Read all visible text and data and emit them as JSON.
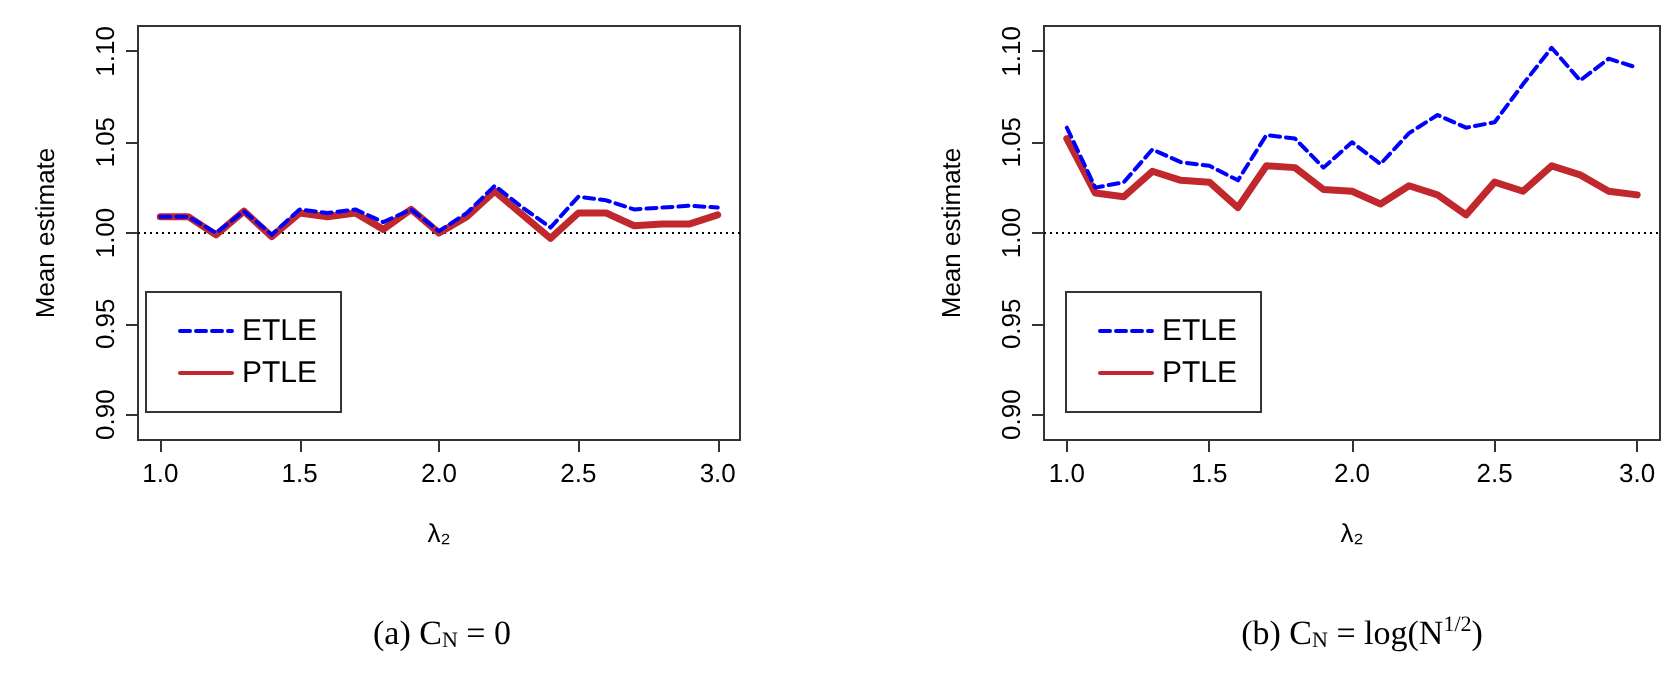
{
  "chart_data": [
    {
      "type": "line",
      "annotations": [
        "(a) C$_{N}$ = 0"
      ],
      "xlabel": "λ₂",
      "ylabel": "Mean estimate",
      "x": [
        1.0,
        1.1,
        1.2,
        1.3,
        1.4,
        1.5,
        1.6,
        1.7,
        1.8,
        1.9,
        2.0,
        2.1,
        2.2,
        2.3,
        2.4,
        2.5,
        2.6,
        2.7,
        2.8,
        2.9,
        3.0
      ],
      "series": [
        {
          "name": "ETLE",
          "color": "#0000ff",
          "line_style": "dashed",
          "values": [
            1.009,
            1.009,
            1.0,
            1.012,
            0.999,
            1.013,
            1.011,
            1.013,
            1.006,
            1.013,
            1.001,
            1.011,
            1.026,
            1.014,
            1.003,
            1.02,
            1.018,
            1.013,
            1.014,
            1.015,
            1.014
          ]
        },
        {
          "name": "PTLE",
          "color": "#c0282d",
          "line_style": "solid",
          "values": [
            1.009,
            1.009,
            0.999,
            1.012,
            0.998,
            1.011,
            1.009,
            1.011,
            1.002,
            1.013,
            1.0,
            1.009,
            1.023,
            1.01,
            0.997,
            1.011,
            1.011,
            1.004,
            1.005,
            1.005,
            1.01
          ]
        }
      ],
      "xlim": [
        0.92,
        3.08
      ],
      "ylim": [
        0.886,
        1.114
      ],
      "xticks": [
        {
          "value": 1,
          "label": "1.0"
        },
        {
          "value": 1.5,
          "label": "1.5"
        },
        {
          "value": 2,
          "label": "2.0"
        },
        {
          "value": 2.5,
          "label": "2.5"
        },
        {
          "value": 3,
          "label": "3.0"
        }
      ],
      "yticks": [
        {
          "value": 0.9,
          "label": "0.90"
        },
        {
          "value": 0.95,
          "label": "0.95"
        },
        {
          "value": 1,
          "label": "1.00"
        },
        {
          "value": 1.05,
          "label": "1.05"
        },
        {
          "value": 1.1,
          "label": "1.10"
        }
      ],
      "ref_lines": [
        {
          "axis": "y",
          "value": 1,
          "color": "#000000",
          "line_style": "dotted"
        }
      ],
      "grid": false,
      "legend": "bottom left",
      "marker": "none"
    },
    {
      "type": "line",
      "annotations": [
        "(b) C$_{N}$ = log(N$^{1/2}$)"
      ],
      "xlabel": "λ₂",
      "ylabel": "Mean estimate",
      "x": [
        1.0,
        1.1,
        1.2,
        1.3,
        1.4,
        1.5,
        1.6,
        1.7,
        1.8,
        1.9,
        2.0,
        2.1,
        2.2,
        2.3,
        2.4,
        2.5,
        2.6,
        2.7,
        2.8,
        2.9,
        3.0
      ],
      "series": [
        {
          "name": "ETLE",
          "color": "#0000ff",
          "line_style": "dashed",
          "values": [
            1.058,
            1.025,
            1.028,
            1.046,
            1.039,
            1.037,
            1.029,
            1.054,
            1.052,
            1.036,
            1.05,
            1.038,
            1.055,
            1.065,
            1.058,
            1.061,
            1.082,
            1.102,
            1.084,
            1.096,
            1.091
          ]
        },
        {
          "name": "PTLE",
          "color": "#c0282d",
          "line_style": "solid",
          "values": [
            1.052,
            1.022,
            1.02,
            1.034,
            1.029,
            1.028,
            1.014,
            1.037,
            1.036,
            1.024,
            1.023,
            1.016,
            1.026,
            1.021,
            1.01,
            1.028,
            1.023,
            1.037,
            1.032,
            1.023,
            1.021
          ]
        }
      ],
      "xlim": [
        0.92,
        3.08
      ],
      "ylim": [
        0.886,
        1.114
      ],
      "xticks": [
        {
          "value": 1,
          "label": "1.0"
        },
        {
          "value": 1.5,
          "label": "1.5"
        },
        {
          "value": 2,
          "label": "2.0"
        },
        {
          "value": 2.5,
          "label": "2.5"
        },
        {
          "value": 3,
          "label": "3.0"
        }
      ],
      "yticks": [
        {
          "value": 0.9,
          "label": "0.90"
        },
        {
          "value": 0.95,
          "label": "0.95"
        },
        {
          "value": 1,
          "label": "1.00"
        },
        {
          "value": 1.05,
          "label": "1.05"
        },
        {
          "value": 1.1,
          "label": "1.10"
        }
      ],
      "ref_lines": [
        {
          "axis": "y",
          "value": 1,
          "color": "#000000",
          "line_style": "dotted"
        }
      ],
      "grid": false,
      "legend": "bottom left",
      "marker": "none"
    }
  ]
}
